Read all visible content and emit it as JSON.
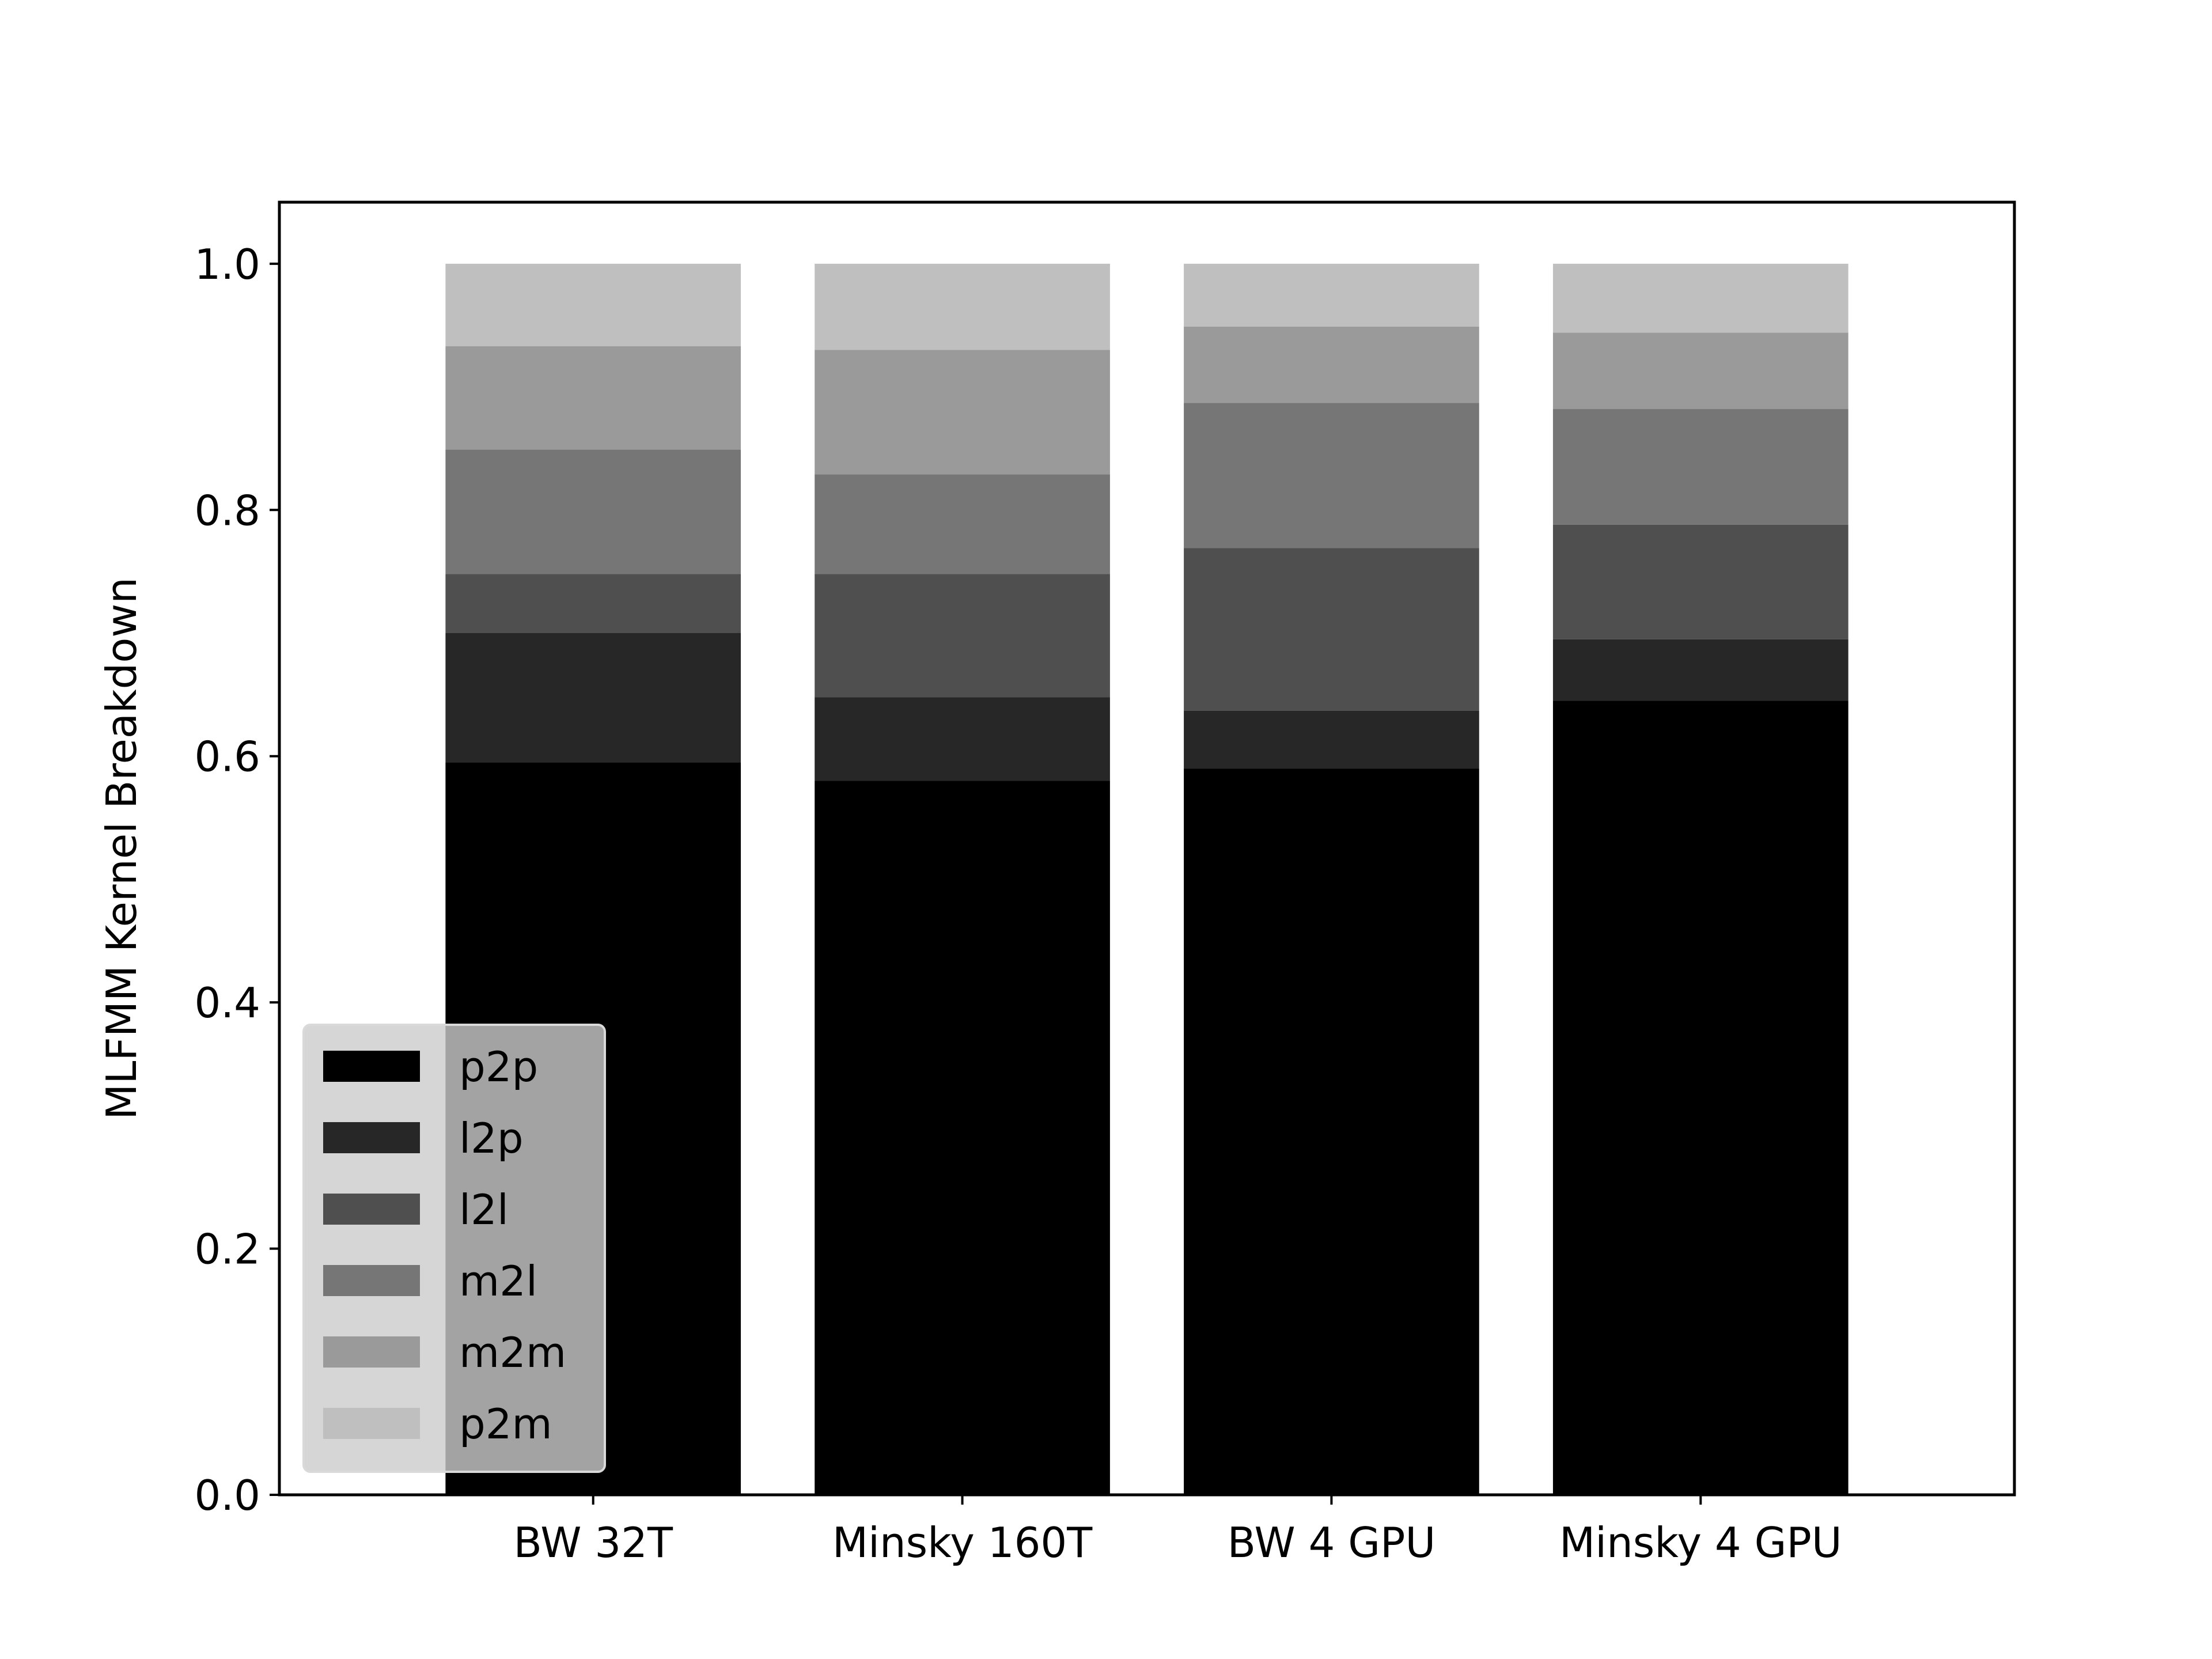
{
  "chart_data": {
    "type": "bar",
    "stacked": true,
    "categories": [
      "BW 32T",
      "Minsky 160T",
      "BW 4 GPU",
      "Minsky 4 GPU"
    ],
    "series": [
      {
        "name": "p2p",
        "color": "#000000",
        "values": [
          0.595,
          0.58,
          0.59,
          0.645
        ]
      },
      {
        "name": "l2p",
        "color": "#272727",
        "values": [
          0.105,
          0.068,
          0.047,
          0.05
        ]
      },
      {
        "name": "l2l",
        "color": "#4f4f4f",
        "values": [
          0.048,
          0.1,
          0.132,
          0.093
        ]
      },
      {
        "name": "m2l",
        "color": "#767676",
        "values": [
          0.101,
          0.081,
          0.118,
          0.094
        ]
      },
      {
        "name": "m2m",
        "color": "#9a9a9a",
        "values": [
          0.084,
          0.101,
          0.062,
          0.062
        ]
      },
      {
        "name": "p2m",
        "color": "#bfbfbf",
        "values": [
          0.067,
          0.07,
          0.051,
          0.056
        ]
      }
    ],
    "title": "",
    "xlabel": "",
    "ylabel": "MLFMM Kernel Breakdown",
    "ylim": [
      0,
      1.05
    ],
    "yticks": [
      0.0,
      0.2,
      0.4,
      0.6,
      0.8,
      1.0
    ],
    "ytick_labels": [
      "0.0",
      "0.2",
      "0.4",
      "0.6",
      "0.8",
      "1.0"
    ],
    "grid": false,
    "legend": {
      "position": "lower-left"
    }
  }
}
